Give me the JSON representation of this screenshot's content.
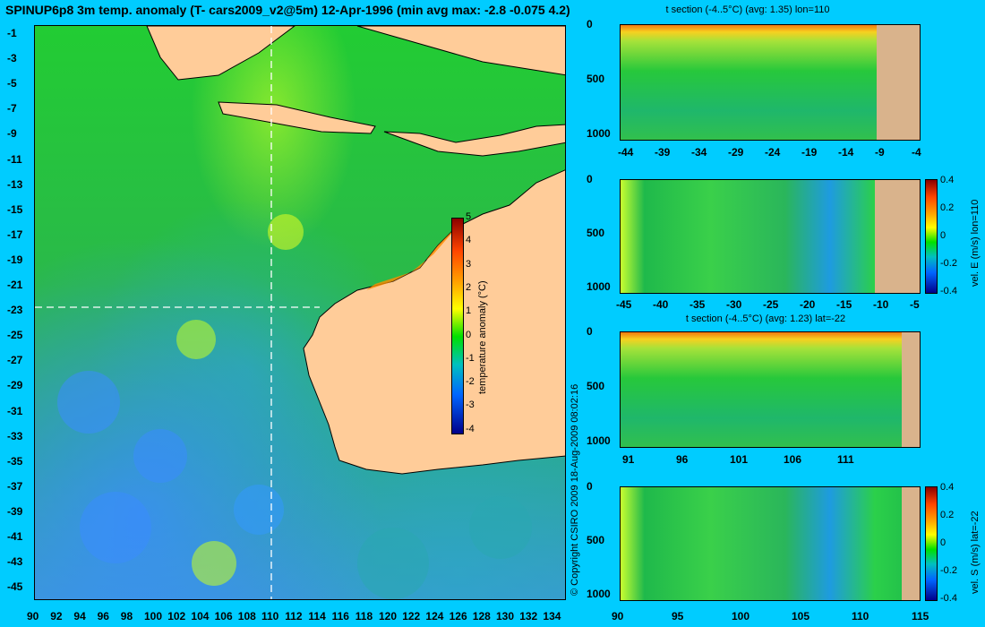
{
  "title": "SPINUP6p8 3m temp. anomaly (T- cars2009_v2@5m) 12-Apr-1996 (min avg max: -2.8 -0.075 4.2)",
  "map": {
    "lat_labels": [
      "-1",
      "-3",
      "-5",
      "-7",
      "-9",
      "-11",
      "-13",
      "-15",
      "-17",
      "-19",
      "-21",
      "-23",
      "-25",
      "-27",
      "-29",
      "-31",
      "-33",
      "-35",
      "-37",
      "-39",
      "-41",
      "-43",
      "-45"
    ],
    "lon_labels": [
      "90",
      "92",
      "94",
      "96",
      "98",
      "100",
      "102",
      "104",
      "106",
      "108",
      "110",
      "112",
      "114",
      "116",
      "118",
      "120",
      "122",
      "124",
      "126",
      "128",
      "130",
      "132",
      "134"
    ],
    "section_lon_label": "110",
    "section_lat_label": "-22",
    "colorbar": {
      "label": "temperature anomaly (°C)",
      "ticks": [
        "5",
        "4",
        "3",
        "2",
        "1",
        "0",
        "-1",
        "-2",
        "-3",
        "-4"
      ]
    },
    "copyright": "© Copyright CSIRO 2009   18-Aug-2009 08:02:16"
  },
  "panels": {
    "t_lon": {
      "title": "t section (-4..5°C) (avg: 1.35) lon=110",
      "y_ticks": [
        "0",
        "500",
        "1000"
      ],
      "x_ticks": [
        "-44",
        "-39",
        "-34",
        "-29",
        "-24",
        "-19",
        "-14",
        "-9",
        "-4"
      ]
    },
    "vel_e": {
      "y_ticks": [
        "0",
        "500",
        "1000"
      ],
      "x_ticks": [
        "-45",
        "-40",
        "-35",
        "-30",
        "-25",
        "-20",
        "-15",
        "-10",
        "-5"
      ],
      "cbar_label": "vel. E (m/s) lon=110",
      "cbar_ticks": [
        "0.4",
        "0.2",
        "0",
        "-0.2",
        "-0.4"
      ]
    },
    "t_lat": {
      "title": "t section (-4..5°C) (avg: 1.23) lat=-22",
      "y_ticks": [
        "0",
        "500",
        "1000"
      ],
      "x_ticks": [
        "91",
        "96",
        "101",
        "106",
        "111"
      ]
    },
    "vel_s": {
      "y_ticks": [
        "0",
        "500",
        "1000"
      ],
      "x_ticks": [
        "90",
        "95",
        "100",
        "105",
        "110",
        "115"
      ],
      "cbar_label": "vel. S (m/s) lat=-22",
      "cbar_ticks": [
        "0.4",
        "0.2",
        "0",
        "-0.2",
        "-0.4"
      ]
    }
  },
  "colors": {
    "background": "#00ccff",
    "land": "#ffcc99",
    "section_land": "#d9b38c"
  }
}
